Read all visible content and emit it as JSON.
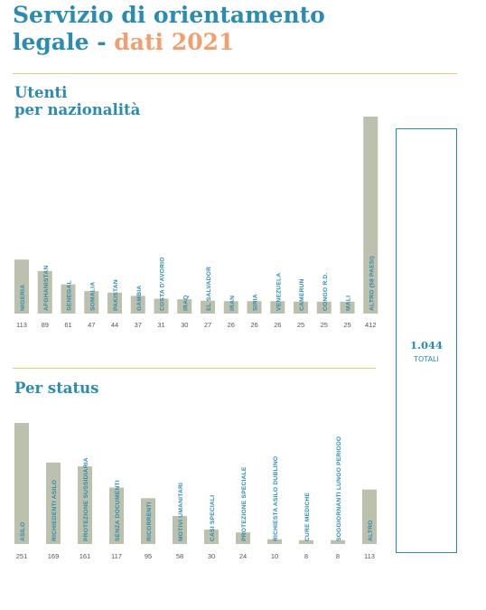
{
  "header": {
    "title_line1": "Servizio di orientamento",
    "title_line2_prefix": "legale - ",
    "title_line2_accent": "dati 2021"
  },
  "colors": {
    "blue": "#2b8bb0",
    "orange": "#f0a070",
    "bar": "#bcc1ad",
    "rule": "#e9c97a"
  },
  "sections": {
    "nationality_title_line1": "Utenti",
    "nationality_title_line2": "per nazionalità",
    "status_title": "Per status"
  },
  "totals": {
    "value": "1.044",
    "label": "TOTALI"
  },
  "chart_data": [
    {
      "type": "bar",
      "categories": [
        "NIGERIA",
        "AFGHANISTAN",
        "SENEGAL",
        "SOMALIA",
        "PAKISTAN",
        "GAMBIA",
        "COSTA D'AVORIO",
        "IRAQ",
        "EL SALVADOR",
        "IRAN",
        "SIRIA",
        "VENEZUELA",
        "CAMERUN",
        "CONGO R.D.",
        "MALI",
        "ALTRO (58 PAESI)"
      ],
      "values": [
        113,
        89,
        61,
        47,
        44,
        37,
        31,
        30,
        27,
        26,
        26,
        26,
        25,
        25,
        25,
        412
      ],
      "value_labels": [
        "113",
        "89",
        "61",
        "47",
        "44",
        "37",
        "31",
        "30",
        "27",
        "26",
        "26",
        "26",
        "25",
        "25",
        "25",
        "412"
      ],
      "ylim": [
        0,
        412
      ],
      "grid": false,
      "legend": "none"
    },
    {
      "type": "bar",
      "categories": [
        "ASILO",
        "RICHIEDENTI ASILO",
        "PROTEZIONE SUSSIDIARIA",
        "SENZA DOCUMENTI",
        "RICORRENTI",
        "MOTIVI UMANITARI",
        "CASI SPECIALI",
        "PROTEZIONE SPECIALE",
        "RICHIESTA ASILO DUBLINO",
        "CURE MEDICHE",
        "SOGGIORNANTI LUNGO PERIODO",
        "ALTRO"
      ],
      "values": [
        251,
        169,
        161,
        117,
        95,
        58,
        30,
        24,
        10,
        8,
        8,
        113
      ],
      "value_labels": [
        "251",
        "169",
        "161",
        "117",
        "95",
        "58",
        "30",
        "24",
        "10",
        "8",
        "8",
        "113"
      ],
      "ylim": [
        0,
        251
      ],
      "grid": false,
      "legend": "none"
    }
  ]
}
